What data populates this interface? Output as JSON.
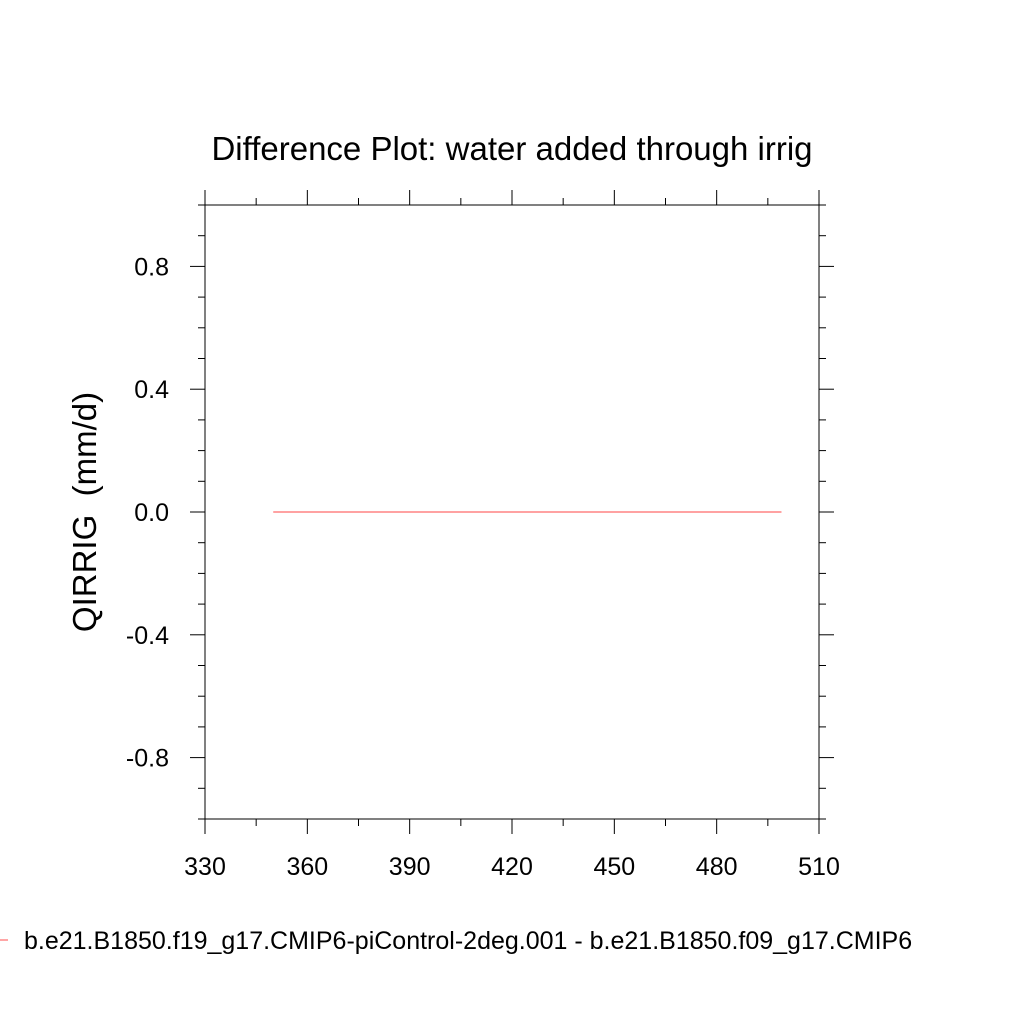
{
  "chart_data": {
    "type": "line",
    "title": "Difference Plot: water added through irrig",
    "xlabel": "",
    "ylabel": "QIRRIG  (mm/d)",
    "xlim": [
      330,
      510
    ],
    "ylim": [
      -1.0,
      1.0
    ],
    "x_ticks": [
      330,
      360,
      390,
      420,
      450,
      480,
      510
    ],
    "x_tick_labels": [
      "330",
      "360",
      "390",
      "420",
      "450",
      "480",
      "510"
    ],
    "y_ticks": [
      0.8,
      0.4,
      0.0,
      -0.4,
      -0.8
    ],
    "y_tick_labels": [
      "0.8",
      "0.4",
      "0.0",
      "-0.4",
      "-0.8"
    ],
    "grid": false,
    "legend_position": "bottom",
    "series": [
      {
        "name": "b.e21.B1850.f19_g17.CMIP6-piControl-2deg.001 - b.e21.B1850.f09_g17.CMIP6",
        "color": "#ff6b6b",
        "x": [
          350,
          499
        ],
        "values": [
          0.0,
          0.0
        ]
      }
    ]
  }
}
